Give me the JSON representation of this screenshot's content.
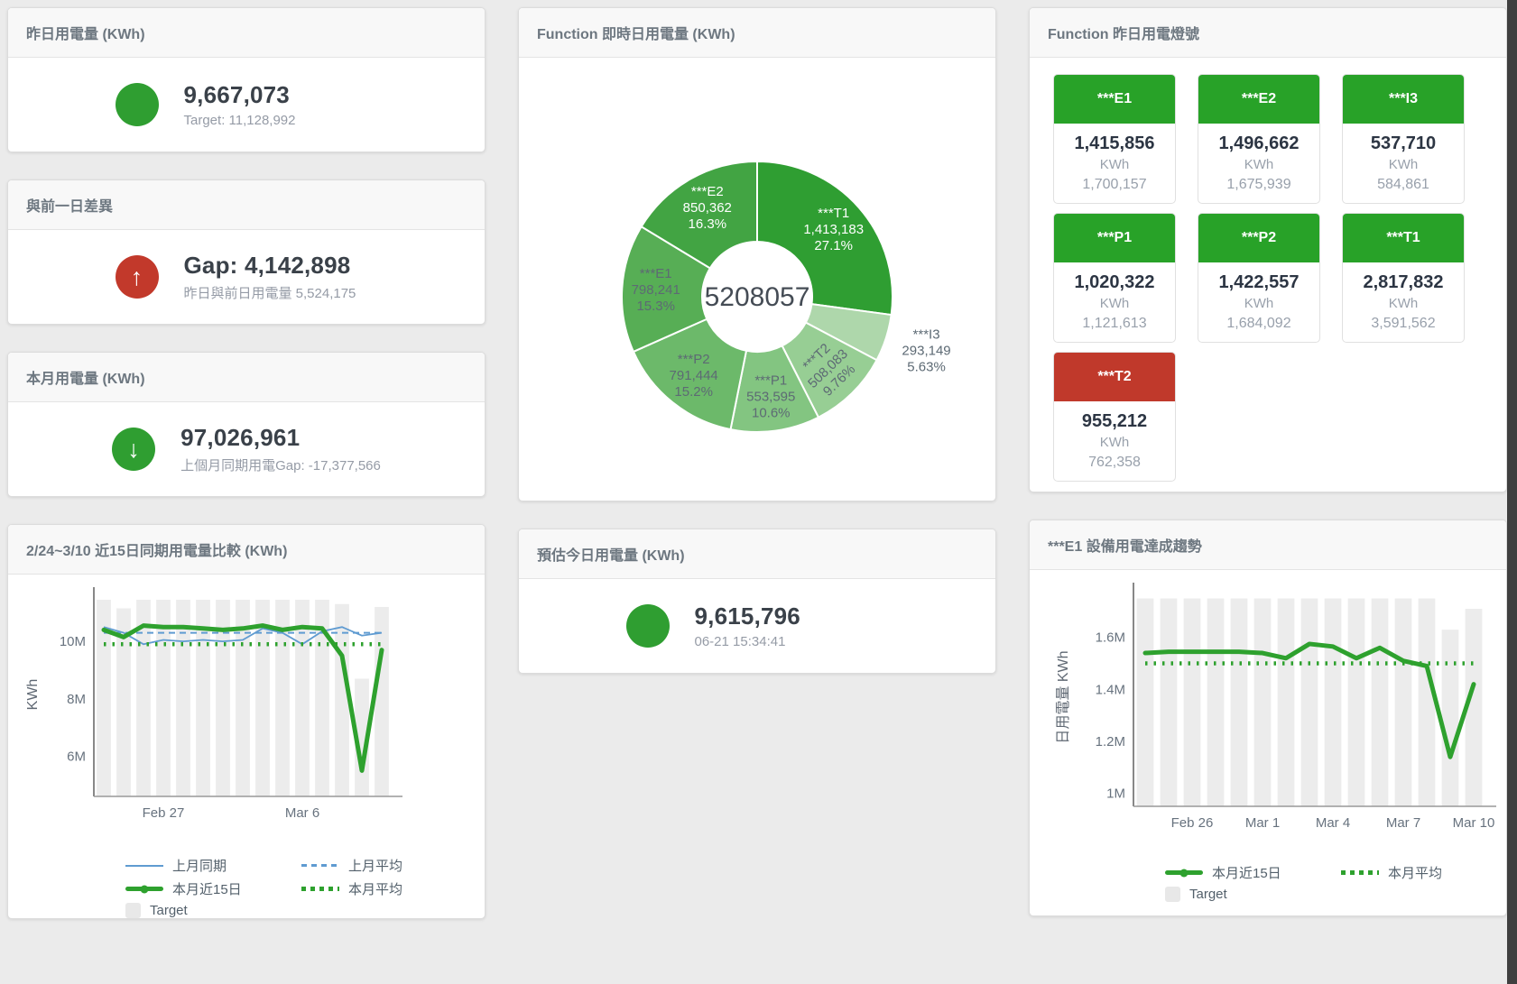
{
  "page": {
    "background": "#ebebeb",
    "right_edge_color": "#3f3f3f"
  },
  "colors": {
    "green": "#28a228",
    "red": "#c0392b",
    "blue_line": "#5f9bd1",
    "green_line": "#2ea12e",
    "target_bar_gray": "#ececec"
  },
  "kpis": {
    "yesterday": {
      "title": "昨日用電量 (KWh)",
      "value": "9,667,073",
      "subtitle": "Target: 11,128,992",
      "icon": "circle",
      "icon_color": "#2f9e31"
    },
    "day_gap": {
      "title": "與前一日差異",
      "value": "Gap: 4,142,898",
      "subtitle": "昨日與前日用電量 5,524,175",
      "icon": "arrow-up",
      "icon_color": "#c2392b"
    },
    "month": {
      "title": "本月用電量 (KWh)",
      "value": "97,026,961",
      "subtitle": "上個月同期用電Gap: -17,377,566",
      "icon": "arrow-down",
      "icon_color": "#2f9e31"
    },
    "today_estimate": {
      "title": "預估今日用電量 (KWh)",
      "value": "9,615,796",
      "subtitle": "06-21 15:34:41",
      "icon": "circle",
      "icon_color": "#2f9e31"
    }
  },
  "realtime_donut": {
    "title": "Function 即時日用電量 (KWh)",
    "chart_data": {
      "type": "pie",
      "center_total": "5208057",
      "unit": "KWh",
      "start_angle": "top, clockwise",
      "segments": [
        {
          "name": "***T1",
          "value": 1413183,
          "value_label": "1,413,183",
          "pct_label": "27.1%",
          "color": "#2f9e32",
          "label_color": "#ffffff"
        },
        {
          "name": "***I3",
          "value": 293149,
          "value_label": "293,149",
          "pct_label": "5.63%",
          "color": "#aed7ab",
          "label_color": "#5d6a74",
          "outside": true
        },
        {
          "name": "***T2",
          "value": 508083,
          "value_label": "508,083",
          "pct_label": "9.76%",
          "color": "#97ce94",
          "label_color": "#5d6a74",
          "rotate": -44
        },
        {
          "name": "***P1",
          "value": 553595,
          "value_label": "553,595",
          "pct_label": "10.6%",
          "color": "#83c581",
          "label_color": "#5d6a74"
        },
        {
          "name": "***P2",
          "value": 791444,
          "value_label": "791,444",
          "pct_label": "15.2%",
          "color": "#6cb96a",
          "label_color": "#5d6a74"
        },
        {
          "name": "***E1",
          "value": 798241,
          "value_label": "798,241",
          "pct_label": "15.3%",
          "color": "#57ae55",
          "label_color": "#5d6a74"
        },
        {
          "name": "***E2",
          "value": 850362,
          "value_label": "850,362",
          "pct_label": "16.3%",
          "color": "#42a443",
          "label_color": "#ffffff"
        }
      ]
    }
  },
  "lamp_board": {
    "title": "Function 昨日用電燈號",
    "tiles": [
      {
        "label": "***E1",
        "value": "1,415,856",
        "unit": "KWh",
        "target": "1,700,157",
        "header_color": "#28a228"
      },
      {
        "label": "***E2",
        "value": "1,496,662",
        "unit": "KWh",
        "target": "1,675,939",
        "header_color": "#28a228"
      },
      {
        "label": "***I3",
        "value": "537,710",
        "unit": "KWh",
        "target": "584,861",
        "header_color": "#28a228"
      },
      {
        "label": "***P1",
        "value": "1,020,322",
        "unit": "KWh",
        "target": "1,121,613",
        "header_color": "#28a228"
      },
      {
        "label": "***P2",
        "value": "1,422,557",
        "unit": "KWh",
        "target": "1,684,092",
        "header_color": "#28a228"
      },
      {
        "label": "***T1",
        "value": "2,817,832",
        "unit": "KWh",
        "target": "3,591,562",
        "header_color": "#28a228"
      },
      {
        "label": "***T2",
        "value": "955,212",
        "unit": "KWh",
        "target": "762,358",
        "header_color": "#c0392b"
      }
    ]
  },
  "compare_chart": {
    "title": "2/24~3/10 近15日同期用電量比較 (KWh)",
    "chart_data": {
      "type": "line+bar",
      "n_days": 15,
      "unit": "M KWh",
      "ylabel": "KWh",
      "y_min": 4.6,
      "y_max": 11.7,
      "y_ticks": [
        {
          "label": "6M",
          "value": 6
        },
        {
          "label": "8M",
          "value": 8
        },
        {
          "label": "10M",
          "value": 10
        }
      ],
      "x_ticks": [
        {
          "label": "Feb 27",
          "index": 3
        },
        {
          "label": "Mar 6",
          "index": 10
        }
      ],
      "series": [
        {
          "name": "上月同期",
          "type": "line",
          "style": "solid",
          "color": "#5f9bd1",
          "values_M": [
            10.5,
            10.3,
            9.9,
            10.05,
            10.0,
            10.05,
            10.0,
            10.05,
            10.45,
            10.3,
            9.9,
            10.35,
            10.5,
            10.2,
            10.3
          ]
        },
        {
          "name": "上月平均",
          "type": "line",
          "style": "dashed",
          "color": "#5f9bd1",
          "constant": 10.3
        },
        {
          "name": "本月近15日",
          "type": "line",
          "style": "thick",
          "color": "#2ea12e",
          "values_M": [
            10.4,
            10.15,
            10.55,
            10.5,
            10.5,
            10.45,
            10.4,
            10.45,
            10.55,
            10.4,
            10.5,
            10.45,
            9.5,
            5.5,
            9.7
          ]
        },
        {
          "name": "本月平均",
          "type": "line",
          "style": "dotted",
          "color": "#2ea12e",
          "constant": 9.9
        },
        {
          "name": "Target",
          "type": "bar",
          "color": "#ececec",
          "values_M": [
            11.45,
            11.15,
            11.45,
            11.45,
            11.45,
            11.45,
            11.45,
            11.45,
            11.45,
            11.45,
            11.45,
            11.45,
            11.3,
            8.7,
            11.2
          ]
        }
      ]
    }
  },
  "trend_chart": {
    "title": "***E1 設備用電達成趨勢",
    "chart_data": {
      "type": "line+bar",
      "n_days": 15,
      "unit": "M KWh",
      "ylabel": "日用電量 KWh",
      "y_min": 0.95,
      "y_max": 1.79,
      "y_ticks": [
        {
          "label": "1M",
          "value": 1
        },
        {
          "label": "1.2M",
          "value": 1.2
        },
        {
          "label": "1.4M",
          "value": 1.4
        },
        {
          "label": "1.6M",
          "value": 1.6
        }
      ],
      "x_ticks": [
        {
          "label": "Feb 26",
          "index": 2
        },
        {
          "label": "Mar 1",
          "index": 5
        },
        {
          "label": "Mar 4",
          "index": 8
        },
        {
          "label": "Mar 7",
          "index": 11
        },
        {
          "label": "Mar 10",
          "index": 14
        }
      ],
      "series": [
        {
          "name": "本月近15日",
          "type": "line",
          "style": "thick",
          "color": "#2ea12e",
          "values_M": [
            1.54,
            1.545,
            1.545,
            1.545,
            1.545,
            1.54,
            1.52,
            1.575,
            1.565,
            1.52,
            1.56,
            1.51,
            1.49,
            1.14,
            1.42
          ]
        },
        {
          "name": "本月平均",
          "type": "line",
          "style": "dotted",
          "color": "#2ea12e",
          "constant": 1.5
        },
        {
          "name": "Target",
          "type": "bar",
          "color": "#ececec",
          "values_M": [
            1.75,
            1.75,
            1.75,
            1.75,
            1.75,
            1.75,
            1.75,
            1.75,
            1.75,
            1.75,
            1.75,
            1.75,
            1.75,
            1.63,
            1.71
          ]
        }
      ]
    }
  }
}
